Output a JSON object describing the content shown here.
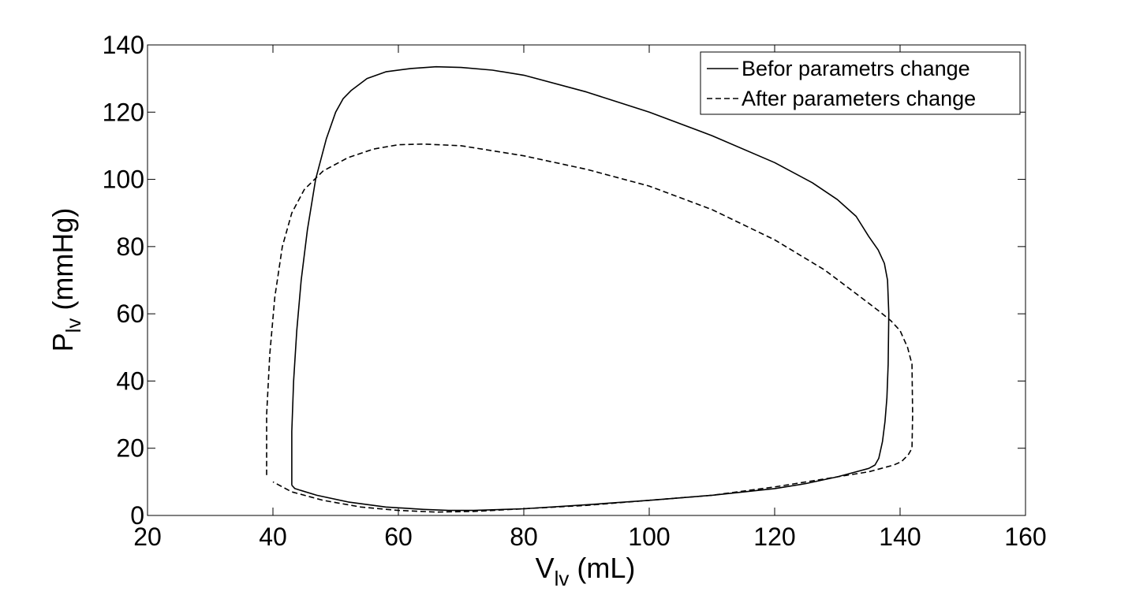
{
  "chart_data": {
    "type": "line",
    "title": "",
    "xlabel": {
      "main": "V",
      "sub": "lv",
      "unit": " (mL)"
    },
    "ylabel": {
      "main": "P",
      "sub": "lv",
      "unit": " (mmHg)"
    },
    "xlim": [
      20,
      160
    ],
    "ylim": [
      0,
      140
    ],
    "xticks": [
      20,
      40,
      60,
      80,
      100,
      120,
      140,
      160
    ],
    "yticks": [
      0,
      20,
      40,
      60,
      80,
      100,
      120,
      140
    ],
    "grid": false,
    "legend_position": "top-right",
    "colors": {
      "line": "#000000",
      "background": "#ffffff"
    },
    "series": [
      {
        "name": "Befor parametrs change",
        "style": "solid",
        "x": [
          43,
          43,
          43.3,
          43.8,
          44.5,
          45.5,
          46.8,
          48.5,
          50,
          51.2,
          52.5,
          55,
          58,
          62,
          66,
          70,
          75,
          80,
          90,
          100,
          110,
          120,
          126,
          130,
          133,
          135,
          136.5,
          137.5,
          138,
          138.2,
          138.1,
          137.9,
          137.6,
          137.2,
          136.6,
          136,
          135,
          133,
          130,
          125,
          120,
          110,
          100,
          90,
          80,
          72,
          68,
          64,
          58,
          52,
          47,
          43.5,
          43
        ],
        "y": [
          9,
          25,
          40,
          55,
          70,
          85,
          100,
          112,
          120,
          124,
          126.5,
          130,
          132,
          133,
          133.5,
          133.3,
          132.5,
          131,
          126,
          120,
          113,
          105,
          99,
          94,
          89,
          83,
          79,
          75,
          70,
          60,
          45,
          35,
          28,
          22,
          17,
          15,
          14,
          13,
          11.5,
          9.5,
          8,
          6,
          4.5,
          3.2,
          2,
          1.5,
          1.5,
          1.8,
          2.5,
          4,
          6,
          8,
          9
        ]
      },
      {
        "name": "After parameters change",
        "style": "dashed",
        "x": [
          39,
          39,
          39.5,
          40.3,
          41.5,
          43,
          45,
          48,
          52,
          56,
          60,
          64,
          70,
          75,
          80,
          90,
          100,
          110,
          120,
          128,
          133,
          136.5,
          138.5,
          140,
          141.2,
          141.9,
          142,
          141.9,
          141.3,
          140.2,
          139,
          137,
          135,
          130,
          125,
          120,
          110,
          100,
          90,
          80,
          72,
          66,
          60,
          54,
          48,
          43,
          40
        ],
        "y": [
          12,
          30,
          48,
          65,
          80,
          90,
          97,
          102.5,
          106.5,
          109,
          110.3,
          110.5,
          110,
          108.5,
          107,
          103,
          98,
          91,
          82,
          73,
          66,
          61,
          58,
          55,
          50,
          45,
          30,
          20,
          18,
          16,
          15,
          14,
          13,
          11.5,
          10,
          8.5,
          6,
          4.5,
          3,
          2,
          1.2,
          1,
          1.5,
          2.5,
          4.5,
          7,
          10
        ]
      }
    ]
  }
}
